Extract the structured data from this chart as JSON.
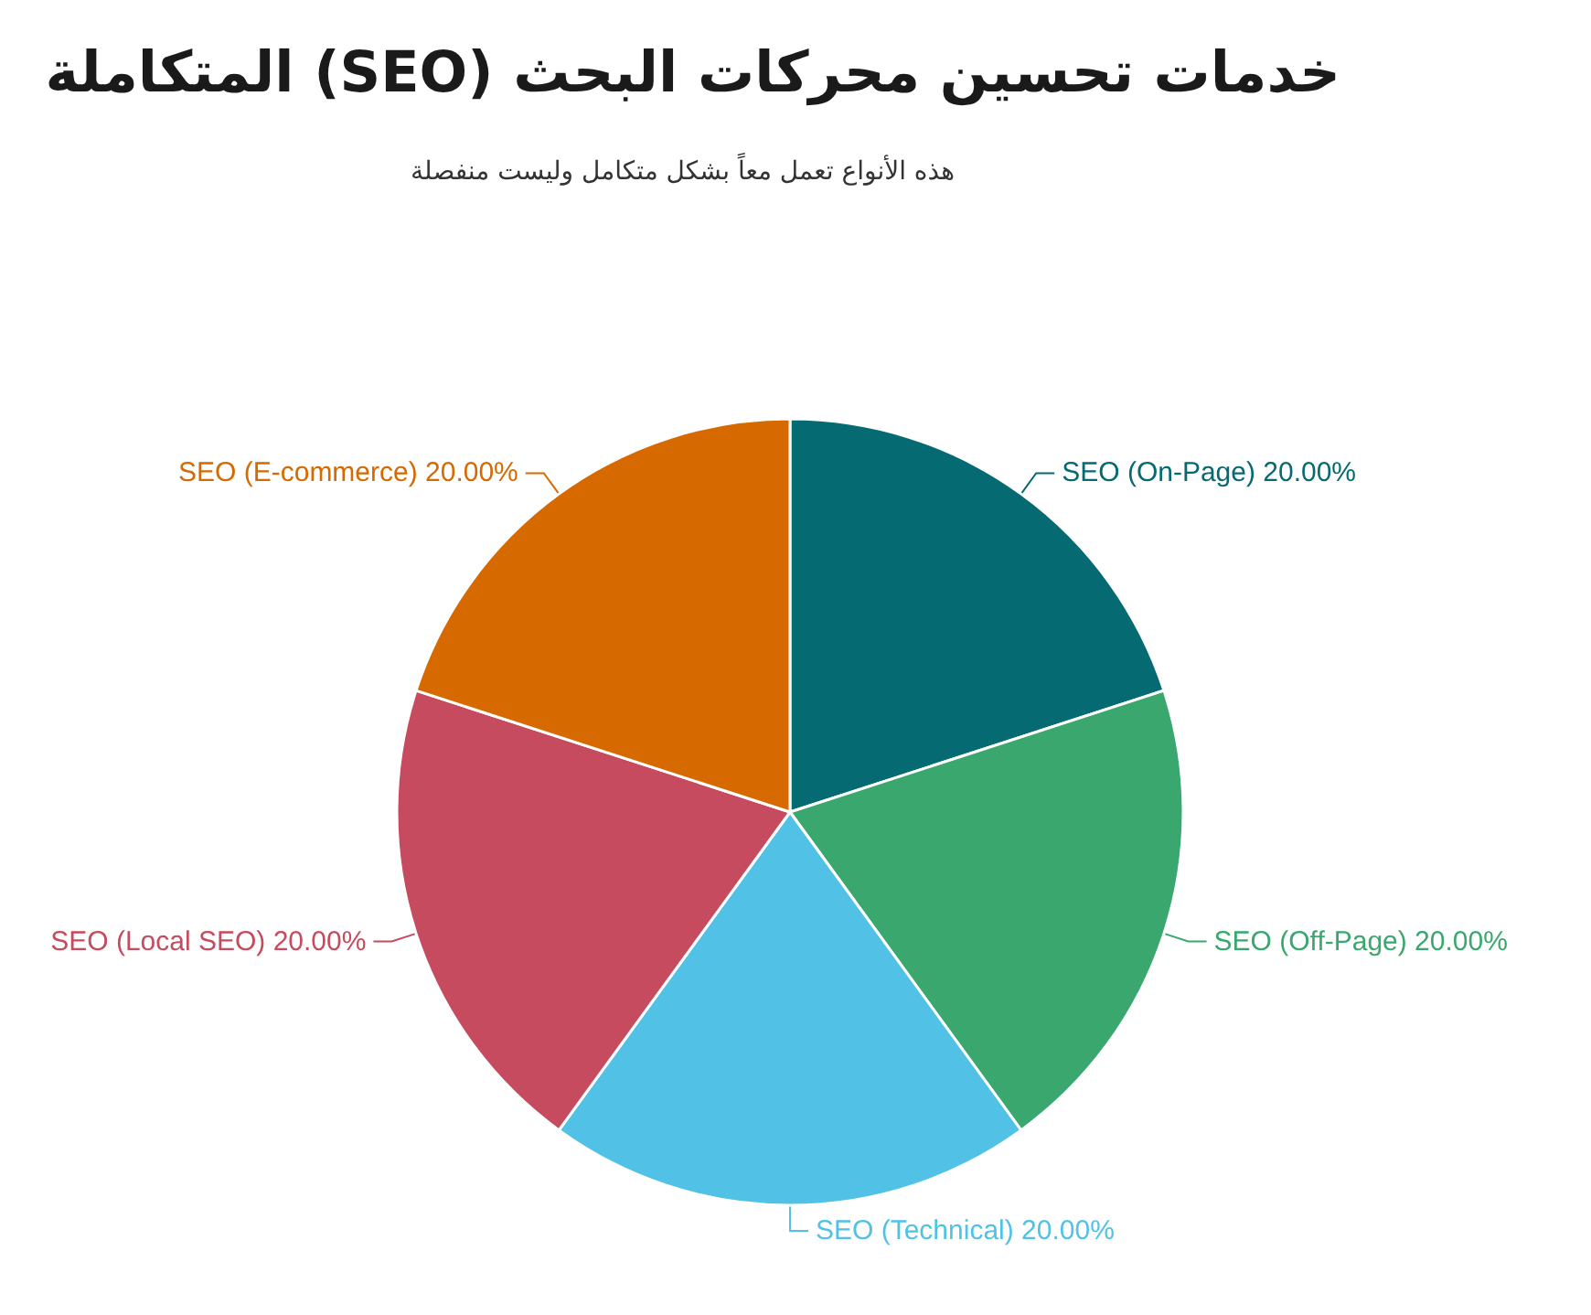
{
  "chart_data": {
    "type": "pie",
    "title": "خدمات تحسين محركات البحث (SEO) المتكاملة",
    "subtitle": "هذه الأنواع تعمل معاً بشكل متكامل وليست منفصلة",
    "categories": [
      "SEO (On-Page)",
      "SEO (Off-Page)",
      "SEO (Technical)",
      "SEO (Local SEO)",
      "SEO (E-commerce)"
    ],
    "values": [
      20,
      20,
      20,
      20,
      20
    ],
    "value_labels": [
      "20.00%",
      "20.00%",
      "20.00%",
      "20.00%",
      "20.00%"
    ],
    "colors": [
      "#066a73",
      "#3aa86e",
      "#51c2e6",
      "#c64b5e",
      "#d66a00"
    ]
  }
}
